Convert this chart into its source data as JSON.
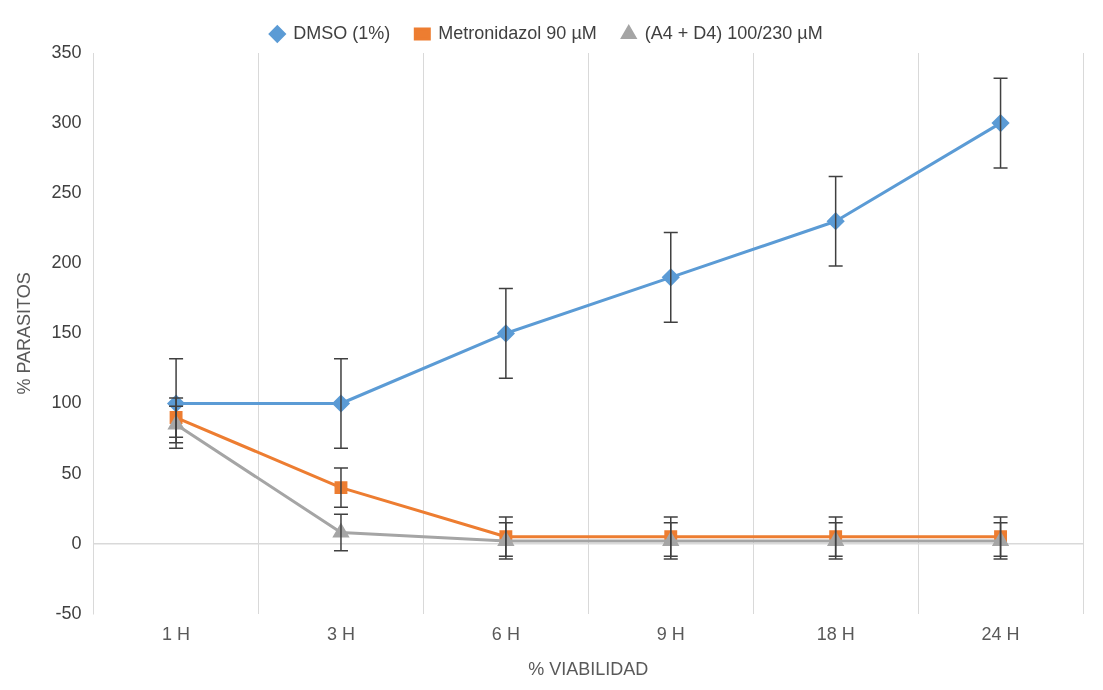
{
  "chart_data": {
    "type": "line",
    "xlabel": "% VIABILIDAD",
    "ylabel": "% PARASITOS",
    "categories": [
      "1 H",
      "3 H",
      "6 H",
      "9 H",
      "18 H",
      "24 H"
    ],
    "series": [
      {
        "name": "DMSO (1%)",
        "color": "#5b9bd5",
        "marker": "diamond",
        "values": [
          100,
          100,
          150,
          190,
          230,
          300
        ],
        "errors": [
          32,
          32,
          32,
          32,
          32,
          32
        ]
      },
      {
        "name": "Metronidazol 90 µM",
        "color": "#ed7d31",
        "marker": "square",
        "values": [
          90,
          40,
          5,
          5,
          5,
          5
        ],
        "errors": [
          14,
          14,
          14,
          14,
          14,
          14
        ]
      },
      {
        "name": "(A4 + D4) 100/230 µM",
        "color": "#a5a5a5",
        "marker": "triangle",
        "values": [
          85,
          8,
          2,
          2,
          2,
          2
        ],
        "errors": [
          13,
          13,
          13,
          13,
          13,
          13
        ]
      }
    ],
    "ylim": [
      -50,
      350
    ],
    "yticks": [
      -50,
      0,
      50,
      100,
      150,
      200,
      250,
      300,
      350
    ],
    "grid": "x",
    "legend": "top",
    "line_style": "solid"
  }
}
